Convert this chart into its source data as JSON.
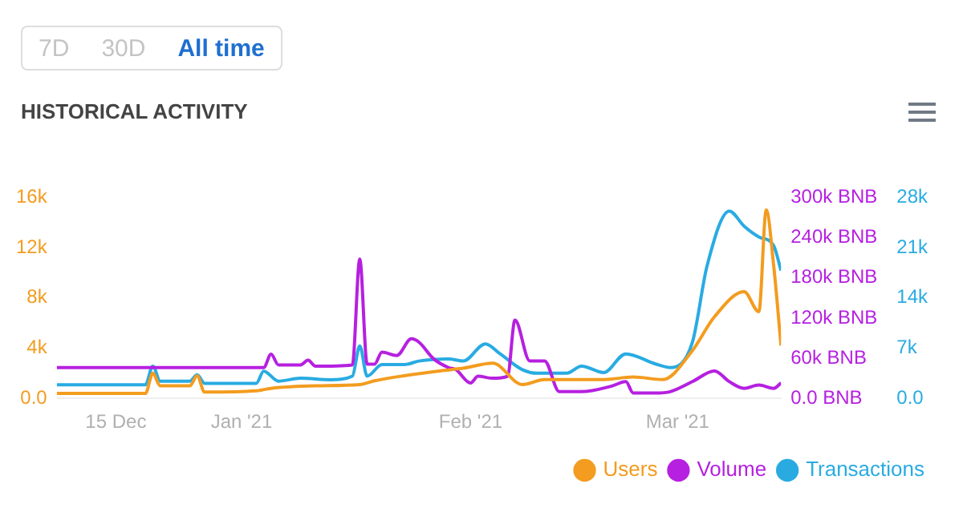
{
  "chart_data": {
    "type": "line",
    "title": "HISTORICAL ACTIVITY",
    "annotations": [
      "7D",
      "30D",
      "All time"
    ],
    "xlim": [
      "2020-12-07",
      "2021-03-15"
    ],
    "xticks": [
      {
        "value": "2020-12-15",
        "label": "15 Dec"
      },
      {
        "value": "2021-01-01",
        "label": "Jan '21"
      },
      {
        "value": "2021-02-01",
        "label": "Feb '21"
      },
      {
        "value": "2021-03-01",
        "label": "Mar '21"
      }
    ],
    "ylim": [
      0,
      16000
    ],
    "yticks": [
      {
        "value": 0,
        "label": "0.0"
      },
      {
        "value": 4000,
        "label": "4k"
      },
      {
        "value": 8000,
        "label": "8k"
      },
      {
        "value": 12000,
        "label": "12k"
      },
      {
        "value": 16000,
        "label": "16k"
      }
    ],
    "y2lim": [
      0,
      300000
    ],
    "y2ticks": [
      {
        "value": 0,
        "label": "0.0 BNB"
      },
      {
        "value": 60000,
        "label": "60k BNB"
      },
      {
        "value": 120000,
        "label": "120k BNB"
      },
      {
        "value": 180000,
        "label": "180k BNB"
      },
      {
        "value": 240000,
        "label": "240k BNB"
      },
      {
        "value": 300000,
        "label": "300k BNB"
      }
    ],
    "y3lim": [
      0,
      28000
    ],
    "y3ticks": [
      {
        "value": 0,
        "label": "0.0"
      },
      {
        "value": 7000,
        "label": "7k"
      },
      {
        "value": 14000,
        "label": "14k"
      },
      {
        "value": 21000,
        "label": "21k"
      },
      {
        "value": 28000,
        "label": "28k"
      }
    ],
    "grid": false,
    "legend": "bottom right",
    "marker": "none",
    "line_style": "solid",
    "series": [
      {
        "name": "Users",
        "color": "#f39c1f",
        "x": [
          "2020-12-07",
          "2020-12-19",
          "2020-12-20",
          "2020-12-21",
          "2020-12-25",
          "2020-12-26",
          "2020-12-27",
          "2021-01-03",
          "2021-01-05",
          "2021-01-11",
          "2021-01-17",
          "2021-01-19",
          "2021-01-23",
          "2021-01-28",
          "2021-01-31",
          "2021-02-04",
          "2021-02-08",
          "2021-02-11",
          "2021-02-19",
          "2021-02-23",
          "2021-02-27",
          "2021-03-03",
          "2021-03-06",
          "2021-03-10",
          "2021-03-12",
          "2021-03-13",
          "2021-03-14",
          "2021-03-15"
        ],
        "values": [
          400,
          400,
          2000,
          1000,
          1000,
          1800,
          500,
          600,
          800,
          1000,
          1100,
          1400,
          1800,
          2200,
          2400,
          2800,
          1100,
          1500,
          1500,
          1700,
          1500,
          3800,
          6500,
          8500,
          6900,
          15000,
          10600,
          4200
        ]
      },
      {
        "name": "Volume",
        "color": "#b620e0",
        "axis": "y2",
        "x": [
          "2020-12-07",
          "2021-01-04",
          "2021-01-05",
          "2021-01-06",
          "2021-01-09",
          "2021-01-10",
          "2021-01-11",
          "2021-01-16",
          "2021-01-17",
          "2021-01-18",
          "2021-01-19",
          "2021-01-20",
          "2021-01-22",
          "2021-01-24",
          "2021-01-25",
          "2021-01-27",
          "2021-01-29",
          "2021-01-30",
          "2021-02-01",
          "2021-02-02",
          "2021-02-04",
          "2021-02-06",
          "2021-02-07",
          "2021-02-09",
          "2021-02-11",
          "2021-02-13",
          "2021-02-16",
          "2021-02-20",
          "2021-02-22",
          "2021-02-23",
          "2021-02-26",
          "2021-02-28",
          "2021-03-03",
          "2021-03-06",
          "2021-03-08",
          "2021-03-10",
          "2021-03-12",
          "2021-03-14",
          "2021-03-15"
        ],
        "values": [
          46000,
          46000,
          66000,
          50000,
          50000,
          57000,
          48000,
          50000,
          208000,
          51000,
          51000,
          69000,
          64000,
          89000,
          84000,
          59000,
          46000,
          43000,
          23000,
          33000,
          30000,
          33000,
          117000,
          56000,
          56000,
          10000,
          10000,
          18000,
          25000,
          8000,
          8000,
          10000,
          25000,
          41000,
          25000,
          15000,
          20000,
          15000,
          23000
        ]
      },
      {
        "name": "Transactions",
        "color": "#29abe2",
        "axis": "y3",
        "x": [
          "2020-12-07",
          "2020-12-19",
          "2020-12-20",
          "2020-12-21",
          "2020-12-25",
          "2020-12-26",
          "2020-12-27",
          "2021-01-03",
          "2021-01-04",
          "2021-01-06",
          "2021-01-09",
          "2021-01-13",
          "2021-01-16",
          "2021-01-17",
          "2021-01-18",
          "2021-01-20",
          "2021-01-23",
          "2021-01-25",
          "2021-01-29",
          "2021-01-31",
          "2021-02-03",
          "2021-02-05",
          "2021-02-08",
          "2021-02-10",
          "2021-02-14",
          "2021-02-16",
          "2021-02-19",
          "2021-02-22",
          "2021-02-26",
          "2021-02-28",
          "2021-03-03",
          "2021-03-05",
          "2021-03-08",
          "2021-03-10",
          "2021-03-12",
          "2021-03-14",
          "2021-03-15"
        ],
        "values": [
          1900,
          1900,
          4500,
          2400,
          2400,
          3300,
          2100,
          2100,
          3800,
          2400,
          2800,
          2600,
          3100,
          7300,
          3100,
          4700,
          4700,
          5200,
          5500,
          5200,
          7600,
          6200,
          4000,
          3500,
          3500,
          4500,
          3600,
          6200,
          4800,
          4300,
          7800,
          18500,
          26100,
          24000,
          22500,
          21300,
          17800
        ]
      }
    ]
  }
}
